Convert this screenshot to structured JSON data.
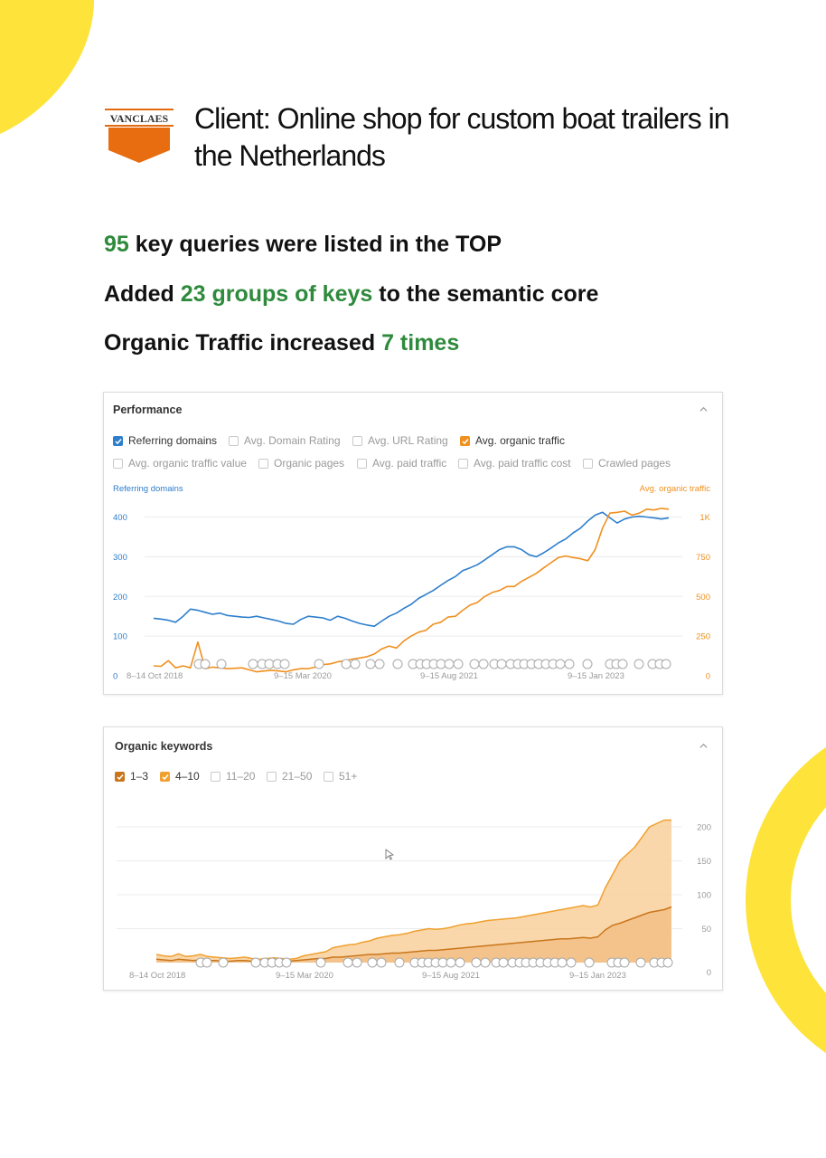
{
  "header": {
    "logo_text": "VANCLAES",
    "client_title": "Client: Online shop for custom boat trailers in the Netherlands"
  },
  "stats": [
    {
      "highlight": "95",
      "text": " key queries were listed in the TOP"
    },
    {
      "prefix": "Added ",
      "highlight": "23 groups of keys",
      "suffix": " to the semantic core"
    },
    {
      "prefix": "Organic Traffic increased ",
      "highlight": "7 times"
    }
  ],
  "colors": {
    "accent_green": "#2e8a3c",
    "blue": "#2d7ecb",
    "orange": "#f0901f",
    "yellow": "#fde33a"
  },
  "performance": {
    "title": "Performance",
    "metrics": [
      {
        "label": "Referring domains",
        "checked": true,
        "color": "#2d7ecb"
      },
      {
        "label": "Avg. Domain Rating",
        "checked": false
      },
      {
        "label": "Avg. URL Rating",
        "checked": false
      },
      {
        "label": "Avg. organic traffic",
        "checked": true,
        "color": "#f0901f"
      },
      {
        "label": "Avg. organic traffic value",
        "checked": false
      },
      {
        "label": "Organic pages",
        "checked": false
      },
      {
        "label": "Avg. paid traffic",
        "checked": false
      },
      {
        "label": "Avg. paid traffic cost",
        "checked": false
      },
      {
        "label": "Crawled pages",
        "checked": false
      }
    ]
  },
  "organic_keywords": {
    "title": "Organic keywords",
    "filters": [
      {
        "label": "1–3",
        "checked": true,
        "color": "#c8761c"
      },
      {
        "label": "4–10",
        "checked": true,
        "color": "#f0a02f"
      },
      {
        "label": "11–20",
        "checked": false
      },
      {
        "label": "21–50",
        "checked": false
      },
      {
        "label": "51+",
        "checked": false
      }
    ]
  },
  "chart_data": [
    {
      "type": "line",
      "title": "Performance",
      "y_left_label": "Referring domains",
      "y_right_label": "Avg. organic traffic",
      "y_left_ticks": [
        "0",
        "100",
        "200",
        "300",
        "400"
      ],
      "y_right_ticks": [
        "0",
        "250",
        "500",
        "750",
        "1K"
      ],
      "x_ticks": [
        "8–14 Oct 2018",
        "9–15 Mar 2020",
        "9–15 Aug 2021",
        "9–15 Jan 2023"
      ],
      "ylim_left": [
        0,
        440
      ],
      "ylim_right": [
        0,
        1100
      ],
      "x": [
        0,
        4,
        8,
        12,
        16,
        20,
        24,
        28,
        32,
        36,
        40,
        44,
        48,
        52,
        56,
        60,
        64,
        68,
        72,
        76,
        80,
        84,
        88,
        92,
        96,
        100,
        104,
        108,
        112,
        116,
        120,
        124,
        128,
        132,
        136,
        140,
        144,
        148,
        152,
        156,
        160,
        164,
        168,
        172,
        176,
        180,
        184,
        188,
        192,
        196,
        200,
        204,
        208,
        212,
        216,
        220,
        224,
        228,
        232,
        236,
        240,
        244,
        248,
        252,
        256,
        260,
        264,
        268,
        272,
        276,
        280
      ],
      "series": [
        {
          "name": "Referring domains",
          "color": "#2d7ecb",
          "axis": "left",
          "values": [
            145,
            143,
            140,
            135,
            150,
            168,
            165,
            160,
            155,
            158,
            152,
            150,
            148,
            147,
            150,
            146,
            142,
            138,
            132,
            130,
            142,
            150,
            148,
            146,
            140,
            150,
            145,
            138,
            132,
            128,
            125,
            138,
            150,
            158,
            170,
            180,
            195,
            205,
            215,
            228,
            240,
            250,
            265,
            272,
            280,
            292,
            305,
            318,
            325,
            325,
            318,
            305,
            300,
            310,
            322,
            335,
            345,
            360,
            372,
            390,
            405,
            412,
            398,
            385,
            395,
            400,
            402,
            400,
            398,
            395,
            398
          ]
        },
        {
          "name": "Avg. organic traffic",
          "color": "#f0901f",
          "axis": "left",
          "values": [
            25,
            24,
            38,
            20,
            25,
            20,
            85,
            18,
            22,
            20,
            18,
            19,
            20,
            15,
            10,
            12,
            14,
            12,
            10,
            15,
            18,
            18,
            22,
            28,
            30,
            35,
            38,
            42,
            45,
            48,
            55,
            68,
            75,
            70,
            88,
            100,
            110,
            115,
            130,
            135,
            148,
            150,
            165,
            178,
            185,
            200,
            210,
            215,
            225,
            225,
            238,
            248,
            258,
            272,
            285,
            298,
            302,
            298,
            295,
            290,
            318,
            372,
            410,
            412,
            415,
            405,
            410,
            420,
            418,
            422,
            420
          ]
        }
      ]
    },
    {
      "type": "area",
      "title": "Organic keywords",
      "y_ticks": [
        "0",
        "50",
        "100",
        "150",
        "200"
      ],
      "x_ticks": [
        "8–14 Oct 2018",
        "9–15 Mar 2020",
        "9–15 Aug 2021",
        "9–15 Jan 2023"
      ],
      "ylim": [
        0,
        200
      ],
      "x": [
        0,
        4,
        8,
        12,
        16,
        20,
        24,
        28,
        32,
        36,
        40,
        44,
        48,
        52,
        56,
        60,
        64,
        68,
        72,
        76,
        80,
        84,
        88,
        92,
        96,
        100,
        104,
        108,
        112,
        116,
        120,
        124,
        128,
        132,
        136,
        140,
        144,
        148,
        152,
        156,
        160,
        164,
        168,
        172,
        176,
        180,
        184,
        188,
        192,
        196,
        200,
        204,
        208,
        212,
        216,
        220,
        224,
        228,
        232,
        236,
        240,
        244,
        248,
        252,
        256,
        260,
        264,
        268,
        272,
        276,
        280
      ],
      "series": [
        {
          "name": "4–10",
          "color": "#f0a02f",
          "values": [
            12,
            10,
            9,
            13,
            9,
            10,
            12,
            9,
            8,
            7,
            6,
            7,
            8,
            6,
            5,
            6,
            7,
            6,
            5,
            6,
            10,
            12,
            14,
            16,
            22,
            24,
            26,
            27,
            30,
            32,
            36,
            38,
            40,
            41,
            43,
            46,
            48,
            50,
            49,
            50,
            52,
            55,
            57,
            58,
            60,
            62,
            63,
            64,
            65,
            66,
            68,
            70,
            72,
            74,
            76,
            78,
            80,
            82,
            84,
            82,
            85,
            110,
            130,
            150,
            160,
            170,
            185,
            200,
            205,
            210,
            210
          ]
        },
        {
          "name": "1–3",
          "color": "#c8761c",
          "values": [
            5,
            4,
            3,
            5,
            4,
            3,
            4,
            3,
            3,
            2,
            2,
            3,
            3,
            2,
            2,
            2,
            3,
            2,
            2,
            3,
            4,
            5,
            6,
            6,
            8,
            8,
            9,
            10,
            11,
            12,
            12,
            13,
            14,
            14,
            15,
            16,
            17,
            18,
            18,
            19,
            20,
            21,
            22,
            23,
            24,
            25,
            26,
            27,
            28,
            29,
            30,
            31,
            32,
            33,
            34,
            35,
            35,
            36,
            37,
            36,
            38,
            48,
            55,
            58,
            62,
            66,
            70,
            74,
            76,
            78,
            82
          ]
        }
      ]
    }
  ]
}
